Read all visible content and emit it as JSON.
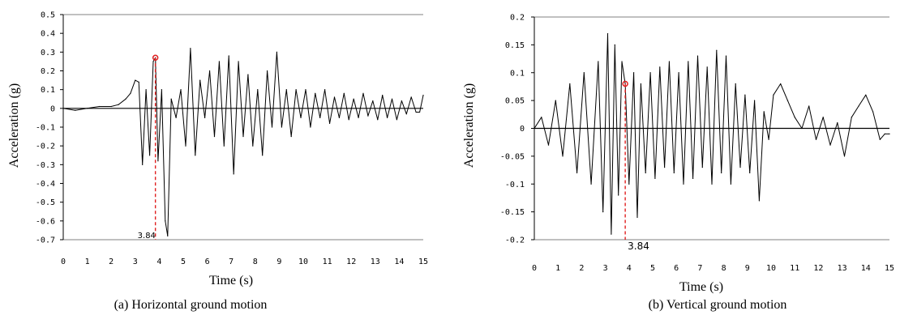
{
  "chart_data": [
    {
      "type": "line",
      "id": "a",
      "caption": "(a)    Horizontal ground motion",
      "xlabel": "Time (s)",
      "ylabel": "Acceleration (g)",
      "xlim": [
        0,
        15
      ],
      "ylim": [
        -0.7,
        0.5
      ],
      "xticks": [
        0,
        1,
        2,
        3,
        4,
        5,
        6,
        7,
        8,
        9,
        10,
        11,
        12,
        13,
        14,
        15
      ],
      "yticks": [
        0.5,
        0.4,
        0.3,
        0.2,
        0.1,
        0,
        -0.1,
        -0.2,
        -0.3,
        -0.4,
        -0.5,
        -0.6,
        -0.7
      ],
      "ytick_labels": [
        "0.5",
        "0.4",
        "0.3",
        "0.2",
        "0.1",
        "0",
        "-0.1",
        "-0.2",
        "-0.3",
        "-0.4",
        "-0.5",
        "-0.6",
        "-0.7"
      ],
      "grid": false,
      "annotation": {
        "label": "3.84",
        "x": 3.84,
        "peak": 0.27,
        "color": "#e02020"
      },
      "series": [
        {
          "color": "#000000",
          "x": [
            0,
            0.5,
            1.0,
            1.5,
            2.0,
            2.3,
            2.6,
            2.8,
            3.0,
            3.15,
            3.3,
            3.45,
            3.6,
            3.75,
            3.84,
            3.95,
            4.1,
            4.25,
            4.35,
            4.5,
            4.7,
            4.9,
            5.1,
            5.3,
            5.5,
            5.7,
            5.9,
            6.1,
            6.3,
            6.5,
            6.7,
            6.9,
            7.1,
            7.3,
            7.5,
            7.7,
            7.9,
            8.1,
            8.3,
            8.5,
            8.7,
            8.9,
            9.1,
            9.3,
            9.5,
            9.7,
            9.9,
            10.1,
            10.3,
            10.5,
            10.7,
            10.9,
            11.1,
            11.3,
            11.5,
            11.7,
            11.9,
            12.1,
            12.3,
            12.5,
            12.7,
            12.9,
            13.1,
            13.3,
            13.5,
            13.7,
            13.9,
            14.1,
            14.3,
            14.5,
            14.7,
            14.85,
            15.0
          ],
          "y": [
            0,
            -0.01,
            0.0,
            0.01,
            0.01,
            0.02,
            0.05,
            0.08,
            0.15,
            0.14,
            -0.3,
            0.1,
            -0.25,
            0.25,
            0.27,
            -0.28,
            0.1,
            -0.6,
            -0.68,
            0.05,
            -0.05,
            0.1,
            -0.2,
            0.32,
            -0.25,
            0.15,
            -0.05,
            0.2,
            -0.15,
            0.25,
            -0.2,
            0.28,
            -0.35,
            0.25,
            -0.15,
            0.18,
            -0.2,
            0.1,
            -0.25,
            0.2,
            -0.1,
            0.3,
            -0.1,
            0.1,
            -0.15,
            0.1,
            -0.05,
            0.1,
            -0.1,
            0.08,
            -0.05,
            0.1,
            -0.08,
            0.06,
            -0.05,
            0.08,
            -0.06,
            0.05,
            -0.05,
            0.08,
            -0.04,
            0.04,
            -0.06,
            0.07,
            -0.05,
            0.05,
            -0.06,
            0.04,
            -0.03,
            0.06,
            -0.02,
            -0.02,
            0.07
          ]
        }
      ]
    },
    {
      "type": "line",
      "id": "b",
      "caption": "(b)    Vertical ground motion",
      "xlabel": "Time (s)",
      "ylabel": "Acceleration (g)",
      "xlim": [
        0,
        15
      ],
      "ylim": [
        -0.2,
        0.2
      ],
      "xticks": [
        0,
        1,
        2,
        3,
        4,
        5,
        6,
        7,
        8,
        9,
        10,
        11,
        12,
        13,
        14,
        15
      ],
      "yticks": [
        0.2,
        0.15,
        0.1,
        0.05,
        0,
        -0.05,
        -0.1,
        -0.15,
        -0.2
      ],
      "ytick_labels": [
        "0.2",
        "0.15",
        "0.1",
        "0.05",
        "0",
        "-0.05",
        "-0.1",
        "-0.15",
        "-0.2"
      ],
      "grid": false,
      "annotation": {
        "label": "3.84",
        "x": 3.84,
        "peak": 0.08,
        "color": "#e02020"
      },
      "series": [
        {
          "color": "#000000",
          "x": [
            0,
            0.3,
            0.6,
            0.9,
            1.2,
            1.5,
            1.8,
            2.1,
            2.4,
            2.7,
            2.9,
            3.1,
            3.25,
            3.4,
            3.55,
            3.7,
            3.84,
            4.0,
            4.2,
            4.35,
            4.5,
            4.7,
            4.9,
            5.1,
            5.3,
            5.5,
            5.7,
            5.9,
            6.1,
            6.3,
            6.5,
            6.7,
            6.9,
            7.1,
            7.3,
            7.5,
            7.7,
            7.9,
            8.1,
            8.3,
            8.5,
            8.7,
            8.9,
            9.1,
            9.3,
            9.5,
            9.7,
            9.9,
            10.1,
            10.4,
            10.7,
            11.0,
            11.3,
            11.6,
            11.9,
            12.2,
            12.5,
            12.8,
            13.1,
            13.4,
            13.7,
            14.0,
            14.3,
            14.6,
            14.8,
            15.0
          ],
          "y": [
            0,
            0.02,
            -0.03,
            0.05,
            -0.05,
            0.08,
            -0.08,
            0.1,
            -0.1,
            0.12,
            -0.15,
            0.17,
            -0.19,
            0.15,
            -0.12,
            0.12,
            0.08,
            -0.1,
            0.1,
            -0.16,
            0.08,
            -0.08,
            0.1,
            -0.09,
            0.11,
            -0.07,
            0.12,
            -0.08,
            0.1,
            -0.1,
            0.12,
            -0.09,
            0.13,
            -0.07,
            0.11,
            -0.1,
            0.14,
            -0.08,
            0.13,
            -0.1,
            0.08,
            -0.07,
            0.06,
            -0.08,
            0.05,
            -0.13,
            0.03,
            -0.02,
            0.06,
            0.08,
            0.05,
            0.02,
            0.0,
            0.04,
            -0.02,
            0.02,
            -0.03,
            0.01,
            -0.05,
            0.02,
            0.04,
            0.06,
            0.03,
            -0.02,
            -0.01,
            -0.01
          ]
        }
      ]
    }
  ]
}
